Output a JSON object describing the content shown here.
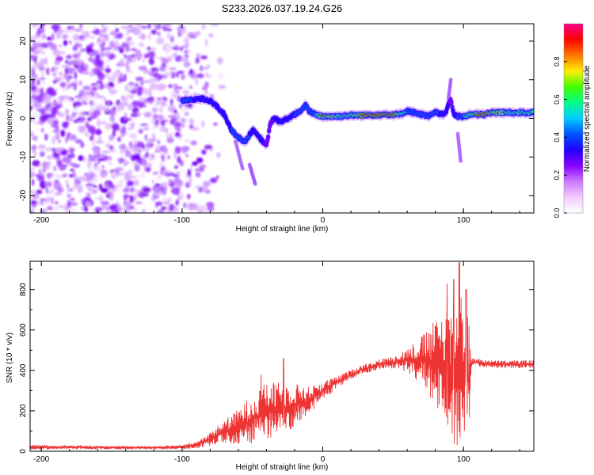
{
  "title": "S233.2026.037.19.24.G26",
  "chart_data": [
    {
      "type": "heatmap",
      "panel": "spectrogram",
      "xlabel": "Height of straight line (km)",
      "ylabel": "Frequency (Hz)",
      "xlim": [
        -208,
        150
      ],
      "ylim": [
        -24.5,
        24.5
      ],
      "xticks": [
        -200,
        -100,
        0,
        100
      ],
      "yticks": [
        -20,
        -10,
        0,
        10,
        20
      ],
      "colorbar": {
        "label": "Normalized spectral amplitude",
        "range": [
          0,
          1
        ],
        "ticks": [
          0.0,
          0.2,
          0.4,
          0.6,
          0.8
        ],
        "tick_labels": [
          "0.0",
          "0.2",
          "0.4",
          "0.6",
          "0.8"
        ],
        "colors": [
          "#ffffff",
          "#f2ccff",
          "#cc77ff",
          "#8800ff",
          "#2200ff",
          "#0055ff",
          "#00ccff",
          "#00ff88",
          "#44ff00",
          "#ffee00",
          "#ff7700",
          "#ff0000",
          "#ff0088"
        ]
      },
      "noise_region_x": [
        -208,
        -80
      ],
      "ridge": {
        "x": [
          -100,
          -92,
          -85,
          -80,
          -75,
          -70,
          -65,
          -60,
          -55,
          -50,
          -45,
          -40,
          -37,
          -34,
          -30,
          -25,
          -20,
          -15,
          -12,
          -10,
          -5,
          0,
          10,
          20,
          30,
          40,
          50,
          55,
          60,
          65,
          70,
          75,
          80,
          85,
          88,
          91,
          93,
          96,
          100,
          105,
          110,
          115,
          120,
          130,
          140,
          150
        ],
        "y": [
          4.5,
          5,
          5,
          4.5,
          3,
          1,
          -3,
          -5,
          -6,
          -3,
          -5,
          -7,
          -1,
          0,
          -1,
          0,
          1,
          2,
          3.5,
          2,
          1,
          0.5,
          0.5,
          0.8,
          0.8,
          1,
          1,
          1,
          2,
          1.5,
          1,
          0.5,
          1.5,
          1,
          2,
          5,
          1,
          0.5,
          0.5,
          1,
          1,
          1,
          1.5,
          1.5,
          1.5,
          1.5
        ],
        "amp": [
          0.55,
          0.5,
          0.45,
          0.4,
          0.45,
          0.4,
          0.5,
          0.5,
          0.55,
          0.45,
          0.5,
          0.35,
          0.35,
          0.4,
          0.4,
          0.45,
          0.5,
          0.5,
          0.55,
          0.5,
          0.6,
          0.85,
          0.7,
          0.65,
          0.9,
          0.9,
          0.9,
          0.7,
          0.6,
          0.6,
          0.5,
          0.55,
          0.55,
          0.45,
          0.45,
          0.35,
          0.4,
          0.5,
          0.6,
          0.7,
          0.85,
          0.95,
          0.8,
          0.7,
          0.65,
          0.65
        ]
      },
      "streaks": [
        {
          "x": [
            -62,
            -57
          ],
          "y": [
            -6,
            -13
          ],
          "amp": 0.15
        },
        {
          "x": [
            -52,
            -48
          ],
          "y": [
            -12,
            -17
          ],
          "amp": 0.12
        },
        {
          "x": [
            96,
            98
          ],
          "y": [
            -4,
            -11
          ],
          "amp": 0.2
        },
        {
          "x": [
            89,
            91
          ],
          "y": [
            4,
            10
          ],
          "amp": 0.25
        }
      ]
    },
    {
      "type": "line",
      "panel": "snr",
      "xlabel": "Height of straight line (km)",
      "ylabel": "SNR (10 * v/v)",
      "xlim": [
        -208,
        150
      ],
      "ylim": [
        0,
        940
      ],
      "xticks": [
        -200,
        -100,
        0,
        100
      ],
      "yticks": [
        0,
        200,
        400,
        600,
        800
      ],
      "series": [
        {
          "name": "SNR",
          "color": "#ee3333",
          "envelope_x": [
            -208,
            -180,
            -150,
            -120,
            -100,
            -90,
            -80,
            -70,
            -60,
            -50,
            -40,
            -30,
            -20,
            -10,
            0,
            10,
            20,
            30,
            40,
            50,
            60,
            70,
            80,
            85,
            90,
            95,
            100,
            103,
            106,
            110,
            120,
            130,
            140,
            150
          ],
          "envelope_y": [
            20,
            20,
            18,
            18,
            20,
            30,
            60,
            100,
            120,
            160,
            200,
            210,
            230,
            250,
            300,
            340,
            380,
            410,
            430,
            440,
            450,
            450,
            430,
            420,
            400,
            380,
            360,
            350,
            440,
            440,
            430,
            430,
            430,
            430
          ],
          "envelope_noise": [
            12,
            10,
            8,
            8,
            10,
            18,
            35,
            55,
            90,
            120,
            140,
            130,
            110,
            70,
            50,
            30,
            25,
            25,
            25,
            30,
            60,
            120,
            220,
            280,
            330,
            380,
            420,
            380,
            20,
            20,
            20,
            20,
            20,
            20
          ],
          "peaks": [
            {
              "x": 97,
              "y": 935
            },
            {
              "x": 93,
              "y": 850
            },
            {
              "x": 88,
              "y": 830
            },
            {
              "x": 102,
              "y": 800
            },
            {
              "x": -28,
              "y": 460
            },
            {
              "x": -44,
              "y": 380
            }
          ]
        }
      ]
    }
  ]
}
